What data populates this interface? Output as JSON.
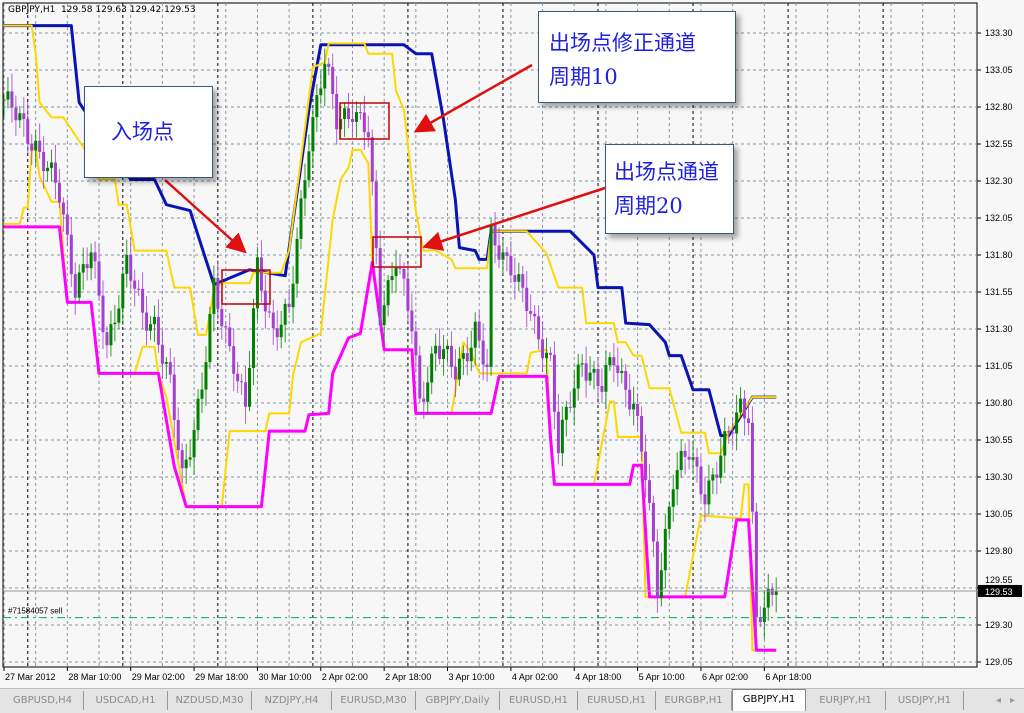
{
  "window": {
    "symbol_info": "GBPJPY,H1  129.58 129.63 129.42 129.53",
    "order_label": "#71584057 sell",
    "order_price": 129.35,
    "current_price_label": "129.53",
    "current_price": 129.53
  },
  "annotations": {
    "entry_box": "入场点",
    "exit_adjusted_line1": "出场点修正通道",
    "exit_adjusted_line2": "周期10",
    "exit_line1": "出场点通道",
    "exit_line2": "周期20"
  },
  "tabs": [
    {
      "label": "GBPUSD,H4"
    },
    {
      "label": "USDCAD,H1"
    },
    {
      "label": "NZDUSD,M30"
    },
    {
      "label": "NZDJPY,H4"
    },
    {
      "label": "EURUSD,M30"
    },
    {
      "label": "GBPJPY,Daily"
    },
    {
      "label": "EURUSD,H1"
    },
    {
      "label": "EURUSD,H1"
    },
    {
      "label": "EURGBP,H1"
    },
    {
      "label": "GBPJPY,H1",
      "active": true
    },
    {
      "label": "EURJPY,H1"
    },
    {
      "label": "USDJPY,H1"
    }
  ],
  "scroll": {
    "left": "◂",
    "right": "▸"
  },
  "colors": {
    "channel20_upper": "#0a14b4",
    "channel20_lower": "#ff00ff",
    "channel10": "#ffd700",
    "bull_candle": "#008000",
    "bear_candle": "#a43fd0",
    "annotation_text": "#2020e0",
    "arrow": "#e01010",
    "order_line": "#00b050"
  },
  "chart_data": {
    "type": "candlestick",
    "timeframe": "H1",
    "x_tick_labels": [
      "27 Mar 2012",
      "28 Mar 10:00",
      "29 Mar 02:00",
      "29 Mar 18:00",
      "30 Mar 10:00",
      "2 Apr 02:00",
      "2 Apr 18:00",
      "3 Apr 10:00",
      "4 Apr 02:00",
      "4 Apr 18:00",
      "5 Apr 10:00",
      "6 Apr 02:00",
      "6 Apr 18:00"
    ],
    "y_tick_labels": [
      "133.30",
      "133.05",
      "132.80",
      "132.55",
      "132.30",
      "132.05",
      "131.80",
      "131.55",
      "131.30",
      "131.05",
      "130.80",
      "130.55",
      "130.30",
      "130.05",
      "129.80",
      "129.55",
      "129.30",
      "129.05"
    ],
    "ylim": [
      129.02,
      133.45
    ],
    "grid": true,
    "price_path": [
      [
        "27 Mar 18:00",
        132.85
      ],
      [
        "28 Mar 02:00",
        132.55
      ],
      [
        "28 Mar 08:00",
        132.2
      ],
      [
        "28 Mar 12:00",
        131.6
      ],
      [
        "28 Mar 16:00",
        131.8
      ],
      [
        "28 Mar 20:00",
        131.2
      ],
      [
        "29 Mar 01:00",
        131.73
      ],
      [
        "29 Mar 05:00",
        131.4
      ],
      [
        "29 Mar 08:00",
        131.35
      ],
      [
        "29 Mar 12:00",
        130.9
      ],
      [
        "29 Mar 15:00",
        130.3
      ],
      [
        "29 Mar 20:00",
        130.9
      ],
      [
        "29 Mar 23:00",
        131.55
      ],
      [
        "30 Mar 04:00",
        131.1
      ],
      [
        "30 Mar 07:00",
        130.75
      ],
      [
        "30 Mar 10:00",
        131.7
      ],
      [
        "30 Mar 14:00",
        131.3
      ],
      [
        "30 Mar 18:00",
        131.4
      ],
      [
        "30 Mar 23:00",
        132.6
      ],
      [
        "2 Apr 03:00",
        133.1
      ],
      [
        "2 Apr 06:00",
        132.7
      ],
      [
        "2 Apr 10:00",
        132.8
      ],
      [
        "2 Apr 14:00",
        132.6
      ],
      [
        "2 Apr 17:00",
        131.4
      ],
      [
        "2 Apr 21:00",
        131.8
      ],
      [
        "3 Apr 01:00",
        131.3
      ],
      [
        "3 Apr 03:00",
        130.8
      ],
      [
        "3 Apr 07:00",
        131.2
      ],
      [
        "3 Apr 12:00",
        131.0
      ],
      [
        "3 Apr 17:00",
        131.3
      ],
      [
        "3 Apr 20:00",
        131.0
      ],
      [
        "3 Apr 21:00",
        131.9
      ],
      [
        "4 Apr 02:00",
        131.75
      ],
      [
        "4 Apr 08:00",
        131.3
      ],
      [
        "4 Apr 12:00",
        131.1
      ],
      [
        "4 Apr 14:00",
        130.5
      ],
      [
        "4 Apr 17:00",
        130.8
      ],
      [
        "4 Apr 20:00",
        131.1
      ],
      [
        "5 Apr 01:00",
        130.9
      ],
      [
        "5 Apr 04:00",
        131.1
      ],
      [
        "5 Apr 09:00",
        130.8
      ],
      [
        "5 Apr 12:00",
        130.3
      ],
      [
        "5 Apr 15:00",
        129.55
      ],
      [
        "5 Apr 19:00",
        130.3
      ],
      [
        "5 Apr 23:00",
        130.45
      ],
      [
        "6 Apr 03:00",
        130.2
      ],
      [
        "6 Apr 06:00",
        130.35
      ],
      [
        "6 Apr 12:00",
        130.8
      ],
      [
        "6 Apr 14:00",
        130.75
      ],
      [
        "6 Apr 16:00",
        129.3
      ],
      [
        "6 Apr 18:00",
        129.4
      ],
      [
        "6 Apr 21:00",
        129.53
      ]
    ],
    "series": [
      {
        "key": "channel20_upper",
        "points": [
          [
            "27 Mar 18:00",
            133.35
          ],
          [
            "28 Mar 11:00",
            133.35
          ],
          [
            "28 Mar 13:00",
            132.83
          ],
          [
            "29 Mar 02:00",
            132.31
          ],
          [
            "29 Mar 08:00",
            132.31
          ],
          [
            "29 Mar 11:00",
            132.14
          ],
          [
            "29 Mar 17:00",
            132.1
          ],
          [
            "29 Mar 23:00",
            131.6
          ],
          [
            "30 Mar 08:00",
            131.7
          ],
          [
            "30 Mar 17:00",
            131.66
          ],
          [
            "30 Mar 23:00",
            132.78
          ],
          [
            "2 Apr 02:00",
            133.22
          ],
          [
            "2 Apr 23:00",
            133.22
          ],
          [
            "3 Apr 02:00",
            133.16
          ],
          [
            "3 Apr 06:00",
            133.16
          ],
          [
            "3 Apr 09:00",
            132.71
          ],
          [
            "3 Apr 12:00",
            132.17
          ],
          [
            "3 Apr 13:00",
            131.85
          ],
          [
            "3 Apr 17:00",
            131.83
          ],
          [
            "3 Apr 18:00",
            131.77
          ],
          [
            "3 Apr 20:00",
            131.77
          ],
          [
            "3 Apr 21:00",
            131.96
          ],
          [
            "4 Apr 17:00",
            131.96
          ],
          [
            "4 Apr 23:00",
            131.8
          ],
          [
            "5 Apr 00:00",
            131.58
          ],
          [
            "5 Apr 06:00",
            131.58
          ],
          [
            "5 Apr 07:00",
            131.34
          ],
          [
            "5 Apr 13:00",
            131.33
          ],
          [
            "5 Apr 17:00",
            131.21
          ],
          [
            "5 Apr 18:00",
            131.12
          ],
          [
            "5 Apr 21:00",
            131.12
          ],
          [
            "6 Apr 00:00",
            130.89
          ],
          [
            "6 Apr 04:00",
            130.89
          ],
          [
            "6 Apr 07:00",
            130.58
          ],
          [
            "6 Apr 09:00",
            130.58
          ],
          [
            "6 Apr 15:00",
            130.84
          ],
          [
            "6 Apr 21:00",
            130.84
          ]
        ]
      },
      {
        "key": "channel10_upper",
        "points": [
          [
            "27 Mar 18:00",
            133.35
          ],
          [
            "28 Mar 01:00",
            133.35
          ],
          [
            "28 Mar 02:00",
            133.16
          ],
          [
            "28 Mar 03:00",
            132.83
          ],
          [
            "28 Mar 06:00",
            132.73
          ],
          [
            "28 Mar 09:00",
            132.73
          ],
          [
            "28 Mar 14:00",
            132.53
          ],
          [
            "28 Mar 18:00",
            132.31
          ],
          [
            "28 Mar 22:00",
            132.31
          ],
          [
            "28 Mar 23:00",
            132.14
          ],
          [
            "29 Mar 01:00",
            132.14
          ],
          [
            "29 Mar 03:00",
            131.83
          ],
          [
            "29 Mar 11:00",
            131.83
          ],
          [
            "29 Mar 13:00",
            131.58
          ],
          [
            "29 Mar 17:00",
            131.58
          ],
          [
            "29 Mar 19:00",
            131.26
          ],
          [
            "29 Mar 21:00",
            131.26
          ],
          [
            "29 Mar 23:00",
            131.56
          ],
          [
            "30 Mar 01:00",
            131.61
          ],
          [
            "30 Mar 08:00",
            131.61
          ],
          [
            "30 Mar 09:00",
            131.68
          ],
          [
            "30 Mar 16:00",
            131.68
          ],
          [
            "30 Mar 18:00",
            131.83
          ],
          [
            "2 Apr 00:00",
            133.07
          ],
          [
            "2 Apr 03:00",
            133.1
          ],
          [
            "2 Apr 04:00",
            133.23
          ],
          [
            "2 Apr 13:00",
            133.23
          ],
          [
            "2 Apr 14:00",
            133.16
          ],
          [
            "2 Apr 20:00",
            133.16
          ],
          [
            "2 Apr 21:00",
            132.91
          ],
          [
            "2 Apr 23:00",
            132.78
          ],
          [
            "3 Apr 01:00",
            132.31
          ],
          [
            "3 Apr 02:00",
            132.1
          ],
          [
            "3 Apr 03:00",
            131.95
          ],
          [
            "3 Apr 04:00",
            131.83
          ],
          [
            "3 Apr 07:00",
            131.83
          ],
          [
            "3 Apr 11:00",
            131.77
          ],
          [
            "3 Apr 12:00",
            131.71
          ],
          [
            "3 Apr 20:00",
            131.71
          ],
          [
            "3 Apr 21:00",
            131.96
          ],
          [
            "4 Apr 06:00",
            131.96
          ],
          [
            "4 Apr 11:00",
            131.81
          ],
          [
            "4 Apr 14:00",
            131.58
          ],
          [
            "4 Apr 20:00",
            131.58
          ],
          [
            "4 Apr 21:00",
            131.34
          ],
          [
            "5 Apr 04:00",
            131.34
          ],
          [
            "5 Apr 05:00",
            131.21
          ],
          [
            "5 Apr 07:00",
            131.21
          ],
          [
            "5 Apr 09:00",
            131.12
          ],
          [
            "5 Apr 11:00",
            131.12
          ],
          [
            "5 Apr 13:00",
            130.9
          ],
          [
            "5 Apr 18:00",
            130.9
          ],
          [
            "5 Apr 21:00",
            130.6
          ],
          [
            "6 Apr 03:00",
            130.6
          ],
          [
            "6 Apr 04:00",
            130.46
          ],
          [
            "6 Apr 07:00",
            130.46
          ],
          [
            "6 Apr 09:00",
            130.6
          ],
          [
            "6 Apr 15:00",
            130.84
          ],
          [
            "6 Apr 21:00",
            130.84
          ]
        ]
      },
      {
        "key": "channel10_lower",
        "points": [
          [
            "27 Mar 18:00",
            132.01
          ],
          [
            "27 Mar 22:00",
            132.01
          ],
          [
            "27 Mar 23:00",
            132.12
          ],
          [
            "28 Mar 00:00",
            132.12
          ],
          [
            "28 Mar 01:00",
            132.51
          ],
          [
            "28 Mar 02:00",
            132.53
          ],
          [
            "28 Mar 03:00",
            132.33
          ],
          [
            "28 Mar 06:00",
            132.16
          ],
          [
            "28 Mar 08:00",
            132.16
          ],
          [
            "28 Mar 10:00",
            131.48
          ],
          [
            "28 Mar 16:00",
            131.48
          ],
          [
            "28 Mar 18:00",
            131.0
          ],
          [
            "29 Mar 03:00",
            131.0
          ],
          [
            "29 Mar 05:00",
            131.18
          ],
          [
            "29 Mar 08:00",
            131.18
          ],
          [
            "29 Mar 09:00",
            131.0
          ],
          [
            "29 Mar 11:00",
            130.84
          ],
          [
            "29 Mar 16:00",
            130.1
          ],
          [
            "30 Mar 01:00",
            130.1
          ],
          [
            "30 Mar 03:00",
            130.61
          ],
          [
            "30 Mar 12:00",
            130.61
          ],
          [
            "30 Mar 13:00",
            130.73
          ],
          [
            "30 Mar 18:00",
            130.73
          ],
          [
            "30 Mar 19:00",
            130.99
          ],
          [
            "30 Mar 21:00",
            131.21
          ],
          [
            "2 Apr 02:00",
            131.27
          ],
          [
            "2 Apr 05:00",
            132.04
          ],
          [
            "2 Apr 07:00",
            132.31
          ],
          [
            "2 Apr 09:00",
            132.39
          ],
          [
            "2 Apr 10:00",
            132.51
          ],
          [
            "2 Apr 12:00",
            132.51
          ],
          [
            "2 Apr 14:00",
            132.42
          ],
          [
            "2 Apr 15:00",
            131.77
          ],
          [
            "2 Apr 18:00",
            131.16
          ],
          [
            "3 Apr 01:00",
            131.16
          ],
          [
            "3 Apr 02:00",
            130.73
          ],
          [
            "3 Apr 11:00",
            130.73
          ],
          [
            "3 Apr 14:00",
            131.21
          ],
          [
            "3 Apr 16:00",
            131.14
          ],
          [
            "3 Apr 18:00",
            131.0
          ],
          [
            "4 Apr 06:00",
            131.0
          ],
          [
            "4 Apr 07:00",
            131.14
          ],
          [
            "4 Apr 11:00",
            131.16
          ],
          [
            "4 Apr 12:00",
            130.57
          ],
          [
            "4 Apr 13:00",
            130.25
          ],
          [
            "4 Apr 23:00",
            130.25
          ],
          [
            "5 Apr 03:00",
            130.81
          ],
          [
            "5 Apr 04:00",
            130.81
          ],
          [
            "5 Apr 05:00",
            130.57
          ],
          [
            "5 Apr 11:00",
            130.57
          ],
          [
            "5 Apr 12:00",
            129.49
          ],
          [
            "5 Apr 22:00",
            129.49
          ],
          [
            "6 Apr 02:00",
            130.04
          ],
          [
            "6 Apr 12:00",
            130.02
          ],
          [
            "6 Apr 13:00",
            130.25
          ],
          [
            "6 Apr 14:00",
            130.25
          ],
          [
            "6 Apr 15:00",
            129.13
          ],
          [
            "6 Apr 21:00",
            129.13
          ]
        ]
      },
      {
        "key": "channel20_lower",
        "points": [
          [
            "27 Mar 18:00",
            131.99
          ],
          [
            "28 Mar 08:00",
            131.99
          ],
          [
            "28 Mar 10:00",
            131.48
          ],
          [
            "28 Mar 16:00",
            131.48
          ],
          [
            "28 Mar 18:00",
            131.0
          ],
          [
            "29 Mar 09:00",
            131.0
          ],
          [
            "29 Mar 13:00",
            130.37
          ],
          [
            "29 Mar 16:00",
            130.1
          ],
          [
            "30 Mar 11:00",
            130.1
          ],
          [
            "30 Mar 13:00",
            130.61
          ],
          [
            "30 Mar 22:00",
            130.61
          ],
          [
            "30 Mar 23:00",
            130.72
          ],
          [
            "2 Apr 04:00",
            130.73
          ],
          [
            "2 Apr 05:00",
            131.0
          ],
          [
            "2 Apr 09:00",
            131.24
          ],
          [
            "2 Apr 12:00",
            131.27
          ],
          [
            "2 Apr 15:00",
            131.75
          ],
          [
            "2 Apr 18:00",
            131.16
          ],
          [
            "3 Apr 01:00",
            131.16
          ],
          [
            "3 Apr 02:00",
            130.73
          ],
          [
            "3 Apr 21:00",
            130.73
          ],
          [
            "3 Apr 23:00",
            130.98
          ],
          [
            "4 Apr 11:00",
            130.98
          ],
          [
            "4 Apr 12:00",
            130.57
          ],
          [
            "4 Apr 13:00",
            130.25
          ],
          [
            "5 Apr 08:00",
            130.25
          ],
          [
            "5 Apr 09:00",
            130.38
          ],
          [
            "5 Apr 11:00",
            130.38
          ],
          [
            "5 Apr 13:00",
            129.49
          ],
          [
            "6 Apr 08:00",
            129.49
          ],
          [
            "6 Apr 11:00",
            130.01
          ],
          [
            "6 Apr 14:00",
            130.01
          ],
          [
            "6 Apr 15:00",
            129.56
          ],
          [
            "6 Apr 16:00",
            129.13
          ],
          [
            "6 Apr 21:00",
            129.13
          ]
        ]
      }
    ]
  }
}
